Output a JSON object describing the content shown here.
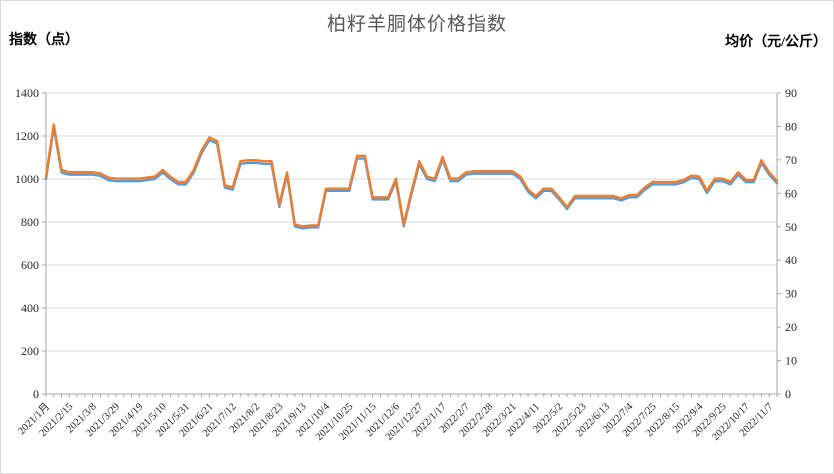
{
  "chart": {
    "title": "柏籽羊胴体价格指数",
    "left_axis_title": "指数（点）",
    "right_axis_title": "均价（元/公斤）"
  },
  "chart_data": {
    "type": "line",
    "title": "柏籽羊胴体价格指数",
    "legend_position": "none",
    "grid": true,
    "x_label_every": 3,
    "x_tick_labels": [
      "2021/1月",
      "2021/2/15",
      "2021/3/8",
      "2021/3/29",
      "2021/4/19",
      "2021/5/10",
      "2021/5/31",
      "2021/6/21",
      "2021/7/12",
      "2021/8/2",
      "2021/8/23",
      "2021/9/13",
      "2021/10/4",
      "2021/10/25",
      "2021/11/15",
      "2021/12/6",
      "2021/12/27",
      "2022/1/17",
      "2022/2/7",
      "2022/2/28",
      "2022/3/21",
      "2022/4/11",
      "2022/5/2",
      "2022/5/23",
      "2022/6/13",
      "2022/7/4",
      "2022/7/25",
      "2022/8/15",
      "2022/9/4",
      "2022/9/25",
      "2022/10/17",
      "2022/11/7"
    ],
    "left_axis": {
      "label": "指数（点）",
      "min": 0,
      "max": 1400,
      "step": 200
    },
    "right_axis": {
      "label": "均价（元/公斤）",
      "min": 0,
      "max": 90,
      "step": 10
    },
    "series": [
      {
        "name": "指数",
        "axis": "left",
        "color": "#5B9BD5",
        "values": [
          1000,
          1240,
          1030,
          1020,
          1020,
          1020,
          1020,
          1015,
          995,
          990,
          990,
          990,
          990,
          995,
          1000,
          1030,
          1000,
          975,
          975,
          1030,
          1120,
          1180,
          1165,
          960,
          950,
          1070,
          1075,
          1075,
          1070,
          1070,
          870,
          1020,
          780,
          770,
          775,
          775,
          945,
          945,
          945,
          945,
          1095,
          1095,
          905,
          905,
          905,
          990,
          780,
          930,
          1070,
          1000,
          990,
          1090,
          990,
          990,
          1020,
          1025,
          1025,
          1025,
          1025,
          1025,
          1025,
          1000,
          940,
          910,
          945,
          945,
          905,
          860,
          910,
          910,
          910,
          910,
          910,
          910,
          900,
          915,
          915,
          950,
          975,
          975,
          975,
          975,
          985,
          1005,
          1000,
          935,
          990,
          990,
          975,
          1020,
          985,
          985,
          1075,
          1020,
          980
        ]
      },
      {
        "name": "均价",
        "axis": "right",
        "color": "#ED7D31",
        "values": [
          65.0,
          80.6,
          67.0,
          66.3,
          66.3,
          66.3,
          66.3,
          66.0,
          64.7,
          64.4,
          64.4,
          64.4,
          64.4,
          64.7,
          65.0,
          67.0,
          65.0,
          63.4,
          63.4,
          67.0,
          72.8,
          76.7,
          75.7,
          62.4,
          61.8,
          69.6,
          69.9,
          69.9,
          69.6,
          69.6,
          56.6,
          66.3,
          50.7,
          50.1,
          50.4,
          50.4,
          61.4,
          61.4,
          61.4,
          61.4,
          71.2,
          71.2,
          58.8,
          58.8,
          58.8,
          64.4,
          50.7,
          60.5,
          69.6,
          65.0,
          64.4,
          70.9,
          64.4,
          64.4,
          66.3,
          66.6,
          66.6,
          66.6,
          66.6,
          66.6,
          66.6,
          65.0,
          61.1,
          59.2,
          61.4,
          61.4,
          58.8,
          55.9,
          59.2,
          59.2,
          59.2,
          59.2,
          59.2,
          59.2,
          58.5,
          59.5,
          59.5,
          61.8,
          63.4,
          63.4,
          63.4,
          63.4,
          64.0,
          65.3,
          65.0,
          60.8,
          64.4,
          64.4,
          63.4,
          66.3,
          64.0,
          64.0,
          69.9,
          66.3,
          63.7
        ]
      }
    ],
    "colors": {
      "gridline": "#D9D9D9",
      "axis_line": "#A6A6A6",
      "title_text": "#595959",
      "tick_text": "#262626"
    }
  }
}
